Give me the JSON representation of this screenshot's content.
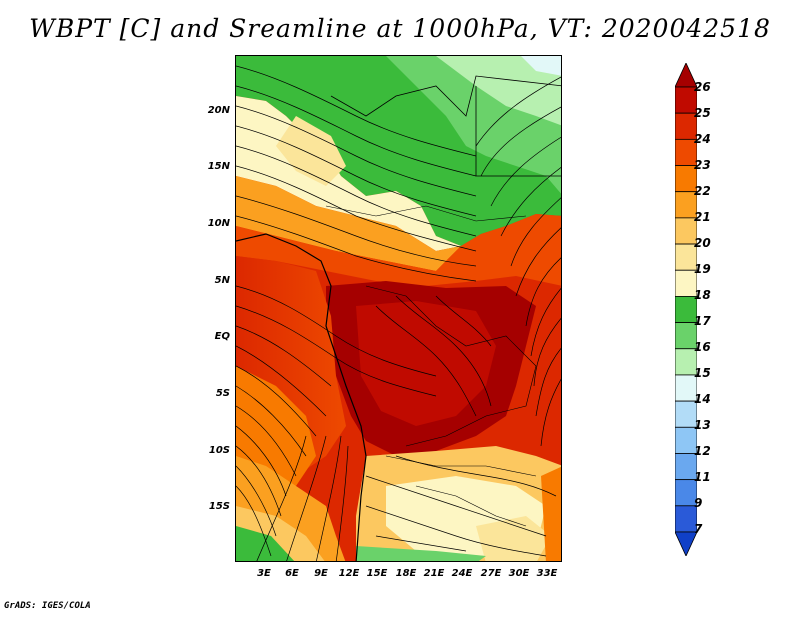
{
  "title": "WBPT [C] and Sreamline at 1000hPa, VT: 2020042518",
  "footer": "GrADS: IGES/COLA",
  "map": {
    "lat_labels": [
      "20N",
      "15N",
      "10N",
      "5N",
      "EQ",
      "5S",
      "10S",
      "15S"
    ],
    "lon_labels": [
      "3E",
      "6E",
      "9E",
      "12E",
      "15E",
      "18E",
      "21E",
      "24E",
      "27E",
      "30E",
      "33E"
    ],
    "lat_range": [
      -19.5,
      25
    ],
    "lon_range": [
      0,
      34.5
    ]
  },
  "colorbar": {
    "levels": [
      "26",
      "25",
      "24",
      "23",
      "22",
      "21",
      "20",
      "19",
      "18",
      "17",
      "16",
      "15",
      "14",
      "13",
      "12",
      "11",
      "9",
      "7"
    ],
    "colors": [
      "#a50000",
      "#c00a00",
      "#dc2800",
      "#ee4a00",
      "#f87a00",
      "#fba020",
      "#fcc860",
      "#fbe59a",
      "#fdf6c3",
      "#3bbb3b",
      "#6ad26a",
      "#b7f0b0",
      "#e2f8f8",
      "#b2dcf7",
      "#8ec6f5",
      "#6aa8ef",
      "#4a88e8",
      "#2a5ad8",
      "#1040c8"
    ]
  }
}
